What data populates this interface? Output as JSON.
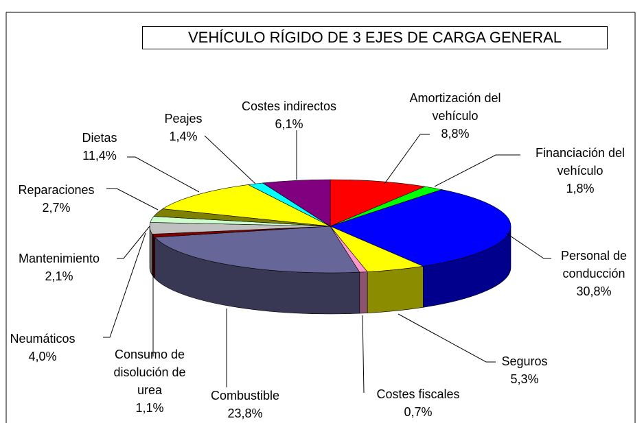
{
  "chart_data": {
    "type": "pie3d",
    "title": "VEHÍCULO RÍGIDO DE 3 EJES DE CARGA GENERAL",
    "categories": [
      "Amortización del vehículo",
      "Financiación del vehículo",
      "Personal de conducción",
      "Seguros",
      "Costes fiscales",
      "Combustible",
      "Consumo de disolución de urea",
      "Neumáticos",
      "Mantenimiento",
      "Reparaciones",
      "Dietas",
      "Peajes",
      "Costes indirectos"
    ],
    "values": [
      8.8,
      1.8,
      30.8,
      5.3,
      0.7,
      23.8,
      1.1,
      4.0,
      2.1,
      2.7,
      11.4,
      1.4,
      6.1
    ],
    "value_labels": [
      "8,8%",
      "1,8%",
      "30,8%",
      "5,3%",
      "0,7%",
      "23,8%",
      "1,1%",
      "4,0%",
      "2,1%",
      "2,7%",
      "11,4%",
      "1,4%",
      "6,1%"
    ],
    "colors": [
      "#ff0000",
      "#00ff00",
      "#0000ff",
      "#ffff00",
      "#ff99cc",
      "#666699",
      "#800000",
      "#c0c0c0",
      "#ccffcc",
      "#808000",
      "#ffff00",
      "#00ffff",
      "#800080"
    ]
  }
}
